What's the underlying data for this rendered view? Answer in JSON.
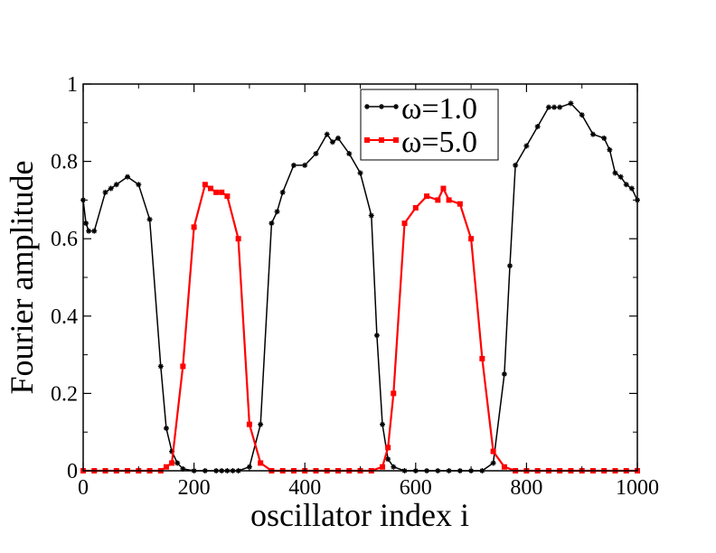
{
  "chart_data": {
    "type": "line",
    "title": "",
    "xlabel": "oscillator index i",
    "ylabel": "Fourier amplitude",
    "xlim": [
      0,
      1000
    ],
    "ylim": [
      0,
      1
    ],
    "xticks": [
      0,
      200,
      400,
      600,
      800,
      1000
    ],
    "yticks": [
      0,
      0.2,
      0.4,
      0.6,
      0.8,
      1
    ],
    "xtick_labels": [
      "0",
      "200",
      "400",
      "600",
      "800",
      "1000"
    ],
    "ytick_labels": [
      "0",
      "0.2",
      "0.4",
      "0.6",
      "0.8",
      "1"
    ],
    "grid": false,
    "legend_position": "top-center",
    "series": [
      {
        "name": "ω=1.0",
        "color": "#000000",
        "marker": "star",
        "x": [
          0,
          5,
          10,
          20,
          40,
          50,
          60,
          80,
          100,
          120,
          140,
          150,
          160,
          170,
          180,
          200,
          220,
          240,
          250,
          260,
          270,
          280,
          300,
          320,
          340,
          350,
          360,
          380,
          400,
          420,
          440,
          450,
          460,
          480,
          500,
          520,
          530,
          540,
          550,
          560,
          580,
          600,
          620,
          640,
          660,
          680,
          700,
          720,
          740,
          760,
          770,
          780,
          800,
          820,
          840,
          850,
          860,
          880,
          900,
          920,
          940,
          950,
          960,
          970,
          980,
          990,
          1000
        ],
        "y": [
          0.7,
          0.64,
          0.62,
          0.62,
          0.72,
          0.73,
          0.74,
          0.76,
          0.74,
          0.65,
          0.27,
          0.11,
          0.05,
          0.02,
          0.005,
          0.0,
          0.0,
          0.0,
          0.0,
          0.0,
          0.0,
          0.0,
          0.01,
          0.12,
          0.64,
          0.67,
          0.72,
          0.79,
          0.79,
          0.82,
          0.87,
          0.85,
          0.86,
          0.82,
          0.77,
          0.66,
          0.35,
          0.12,
          0.03,
          0.01,
          0.0,
          0.0,
          0.0,
          0.0,
          0.0,
          0.0,
          0.0,
          0.0,
          0.02,
          0.25,
          0.53,
          0.79,
          0.84,
          0.89,
          0.94,
          0.94,
          0.94,
          0.95,
          0.92,
          0.87,
          0.86,
          0.83,
          0.77,
          0.76,
          0.74,
          0.73,
          0.7
        ]
      },
      {
        "name": "ω=5.0",
        "color": "#ff0000",
        "marker": "square",
        "x": [
          0,
          20,
          40,
          60,
          80,
          100,
          120,
          140,
          150,
          160,
          180,
          200,
          220,
          230,
          240,
          250,
          260,
          280,
          300,
          320,
          340,
          360,
          380,
          400,
          420,
          440,
          460,
          480,
          500,
          520,
          540,
          550,
          560,
          580,
          600,
          620,
          640,
          650,
          660,
          680,
          700,
          720,
          740,
          760,
          780,
          800,
          820,
          840,
          860,
          880,
          900,
          920,
          940,
          960,
          980,
          1000
        ],
        "y": [
          0.0,
          0.0,
          0.0,
          0.0,
          0.0,
          0.0,
          0.0,
          0.0,
          0.01,
          0.02,
          0.27,
          0.63,
          0.74,
          0.73,
          0.72,
          0.72,
          0.71,
          0.6,
          0.12,
          0.02,
          0.0,
          0.0,
          0.0,
          0.0,
          0.0,
          0.0,
          0.0,
          0.0,
          0.0,
          0.0,
          0.01,
          0.06,
          0.2,
          0.64,
          0.68,
          0.71,
          0.7,
          0.73,
          0.7,
          0.69,
          0.6,
          0.29,
          0.05,
          0.01,
          0.0,
          0.0,
          0.0,
          0.0,
          0.0,
          0.0,
          0.0,
          0.0,
          0.0,
          0.0,
          0.0,
          0.0
        ]
      }
    ]
  }
}
